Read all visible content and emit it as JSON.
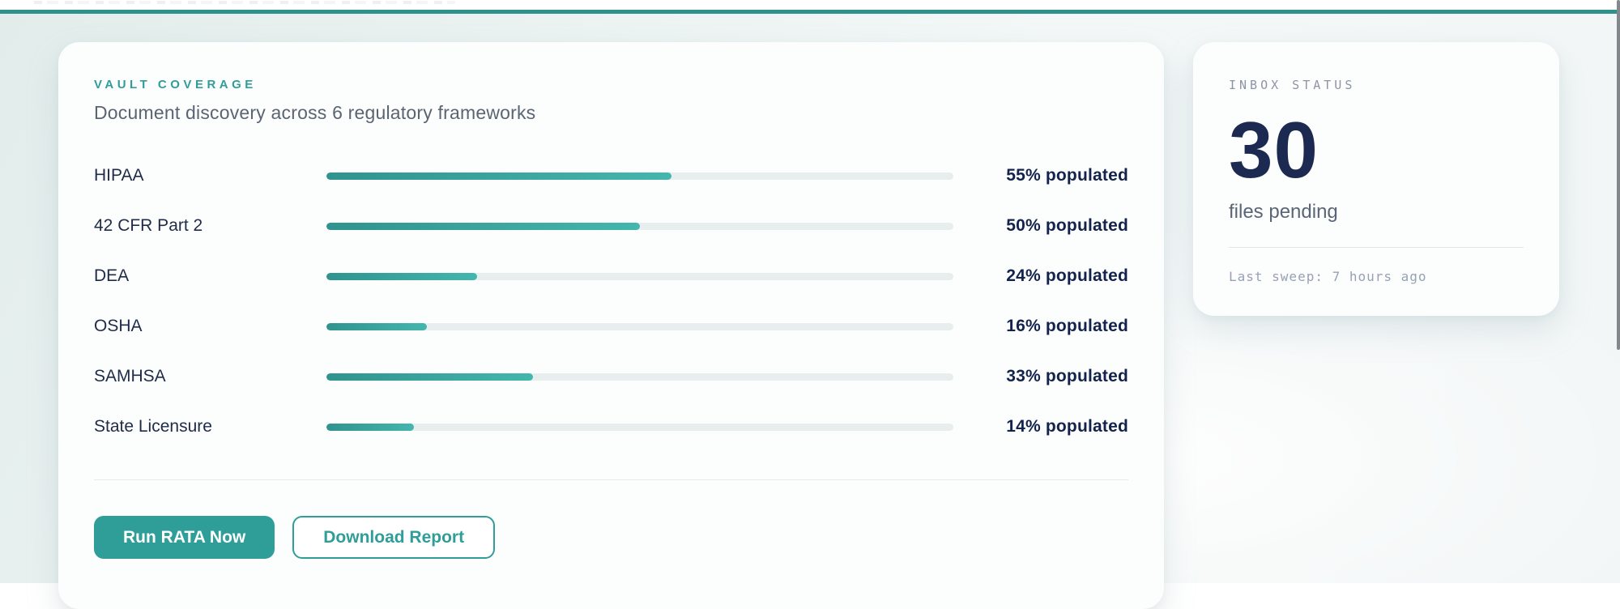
{
  "colors": {
    "accent": "#2f9e98",
    "accent_dark": "#2e918c",
    "track": "#e8eeee",
    "bar_start": "#2f938e",
    "bar_end": "#44b6ae"
  },
  "coverage_card": {
    "eyebrow": "VAULT COVERAGE",
    "title": "Document discovery across 6 regulatory frameworks",
    "rows": [
      {
        "label": "HIPAA",
        "percent": 55,
        "status": "55% populated"
      },
      {
        "label": "42 CFR Part 2",
        "percent": 50,
        "status": "50% populated"
      },
      {
        "label": "DEA",
        "percent": 24,
        "status": "24% populated"
      },
      {
        "label": "OSHA",
        "percent": 16,
        "status": "16% populated"
      },
      {
        "label": "SAMHSA",
        "percent": 33,
        "status": "33% populated"
      },
      {
        "label": "State Licensure",
        "percent": 14,
        "status": "14% populated"
      }
    ],
    "actions": {
      "primary_label": "Run RATA Now",
      "secondary_label": "Download Report"
    }
  },
  "inbox_card": {
    "eyebrow": "INBOX STATUS",
    "count": "30",
    "caption": "files pending",
    "meta": "Last sweep: 7 hours ago"
  }
}
